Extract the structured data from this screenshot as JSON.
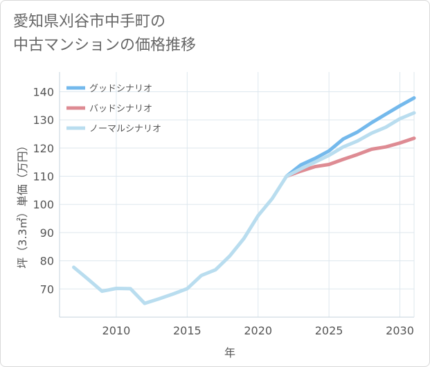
{
  "title": {
    "line1": "愛知県刈谷市中手町の",
    "line2": "中古マンションの価格推移"
  },
  "chart_data": {
    "type": "line",
    "xlabel": "年",
    "ylabel": "坪（3.3㎡）単価（万円）",
    "xlim": [
      2006,
      2031
    ],
    "ylim": [
      60,
      147
    ],
    "x_ticks": [
      2010,
      2015,
      2020,
      2025,
      2030
    ],
    "y_ticks": [
      70,
      80,
      90,
      100,
      110,
      120,
      130,
      140
    ],
    "grid": true,
    "legend_position": "top-left",
    "series": [
      {
        "name": "グッドシナリオ",
        "color": "#74b9ec",
        "x": [
          2022,
          2023,
          2024,
          2025,
          2026,
          2027,
          2028,
          2029,
          2030,
          2031
        ],
        "values": [
          110.0,
          114.0,
          116.3,
          119.0,
          123.2,
          125.7,
          129.0,
          132.0,
          135.0,
          137.8
        ]
      },
      {
        "name": "バッドシナリオ",
        "color": "#de8b93",
        "x": [
          2022,
          2023,
          2024,
          2025,
          2026,
          2027,
          2028,
          2029,
          2030,
          2031
        ],
        "values": [
          110.0,
          111.8,
          113.4,
          114.2,
          116.0,
          117.7,
          119.6,
          120.4,
          121.8,
          123.5
        ]
      },
      {
        "name": "ノーマルシナリオ",
        "color": "#b9ddef",
        "x": [
          2007,
          2008,
          2009,
          2010,
          2011,
          2012,
          2013,
          2014,
          2015,
          2016,
          2017,
          2018,
          2019,
          2020,
          2021,
          2022,
          2023,
          2024,
          2025,
          2026,
          2027,
          2028,
          2029,
          2030,
          2031
        ],
        "values": [
          77.7,
          73.5,
          69.2,
          70.2,
          70.1,
          64.9,
          66.5,
          68.2,
          70.1,
          74.8,
          76.8,
          81.7,
          87.9,
          96.0,
          102.1,
          110.0,
          112.6,
          115.0,
          117.4,
          120.4,
          122.5,
          125.3,
          127.4,
          130.4,
          132.5
        ]
      }
    ]
  }
}
